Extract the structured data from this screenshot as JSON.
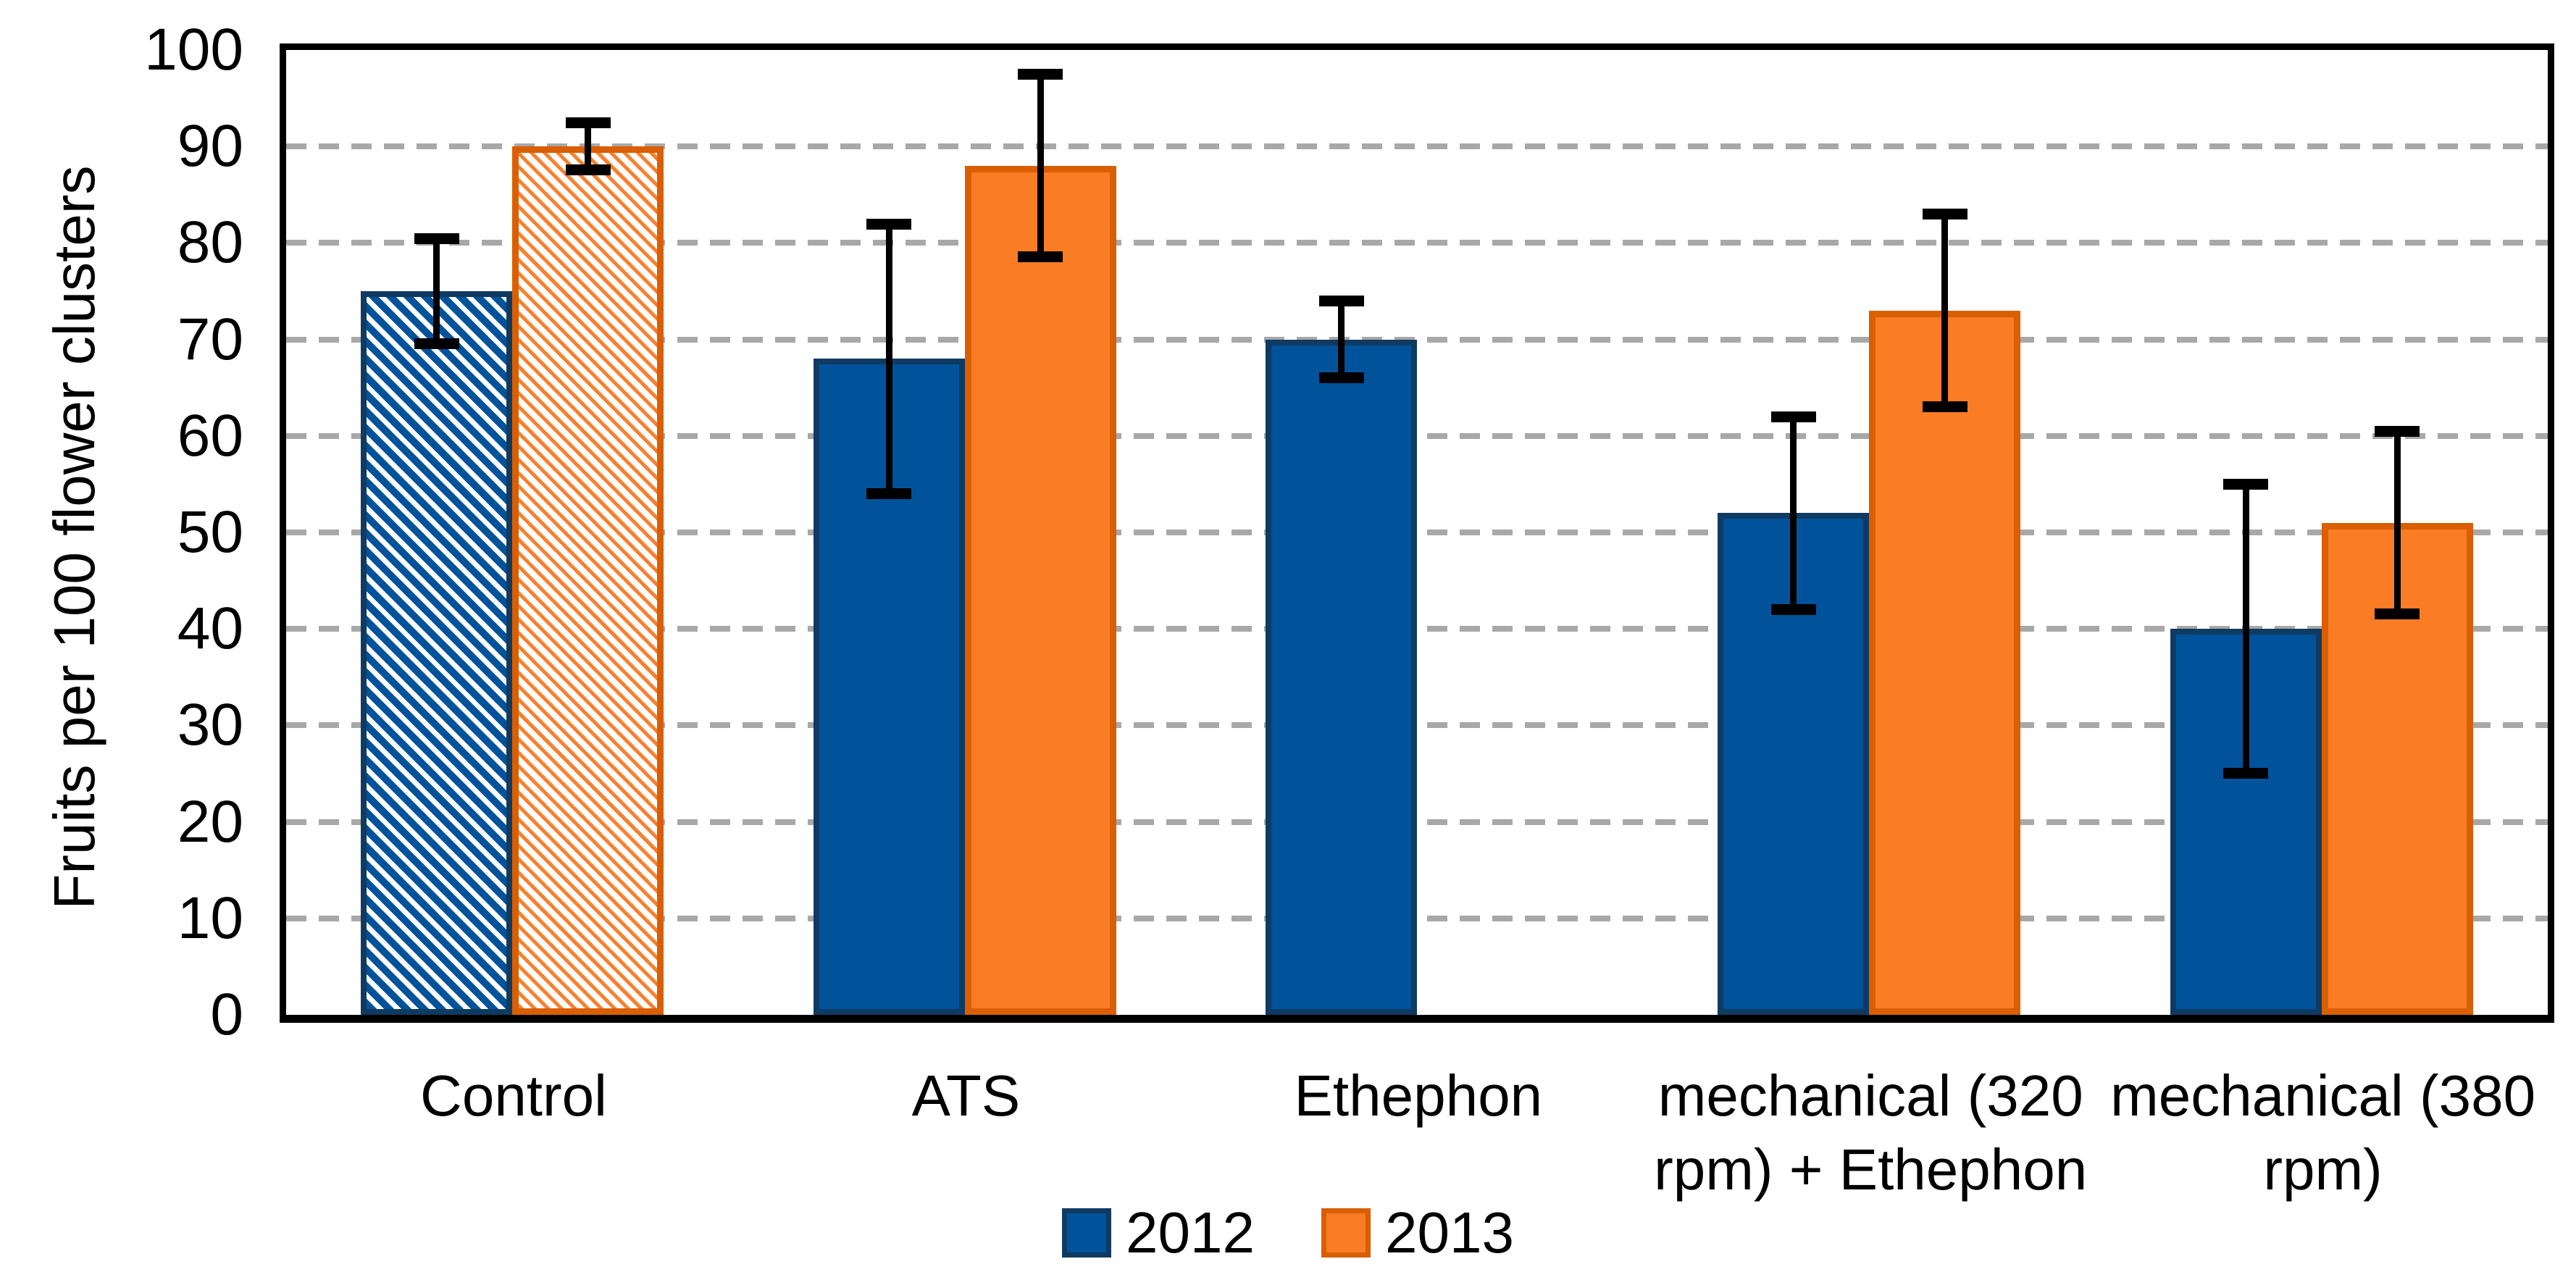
{
  "chart_data": {
    "type": "bar",
    "title": "",
    "ylabel": "Fruits per 100 flower clusters",
    "xlabel": "",
    "ylim": [
      0,
      100
    ],
    "ytick_step": 10,
    "yticks": [
      "0",
      "10",
      "20",
      "30",
      "40",
      "50",
      "60",
      "70",
      "80",
      "90",
      "100"
    ],
    "grid": "horizontal-dashed",
    "gridline_values": [
      10,
      20,
      30,
      40,
      50,
      60,
      70,
      80,
      90
    ],
    "gridline_color": "#a8a8a8",
    "legend_position": "bottom-center",
    "categories": [
      "Control",
      "ATS",
      "Ethephon",
      "mechanical (320\nrpm) + Ethephon",
      "mechanical (380\nrpm)"
    ],
    "series": [
      {
        "name": "2012",
        "color": "#00539b",
        "border_color": "#0f3a62",
        "values": [
          75,
          68,
          70,
          52,
          40
        ],
        "error_low": [
          69.5,
          54,
          66,
          42,
          25
        ],
        "error_high": [
          80.5,
          82,
          74,
          62,
          55
        ],
        "hatched": [
          true,
          false,
          false,
          false,
          false
        ]
      },
      {
        "name": "2013",
        "color": "#fa7c25",
        "border_color": "#d95f02",
        "values": [
          90,
          88,
          null,
          73,
          51
        ],
        "error_low": [
          87.5,
          78.5,
          null,
          63,
          41.5
        ],
        "error_high": [
          92.5,
          97.5,
          null,
          83,
          60.5
        ],
        "hatched": [
          true,
          false,
          false,
          false,
          false
        ]
      }
    ]
  },
  "legend": {
    "items": [
      {
        "label": "2012",
        "color": "#00539b"
      },
      {
        "label": "2013",
        "color": "#fa7c25"
      }
    ]
  }
}
